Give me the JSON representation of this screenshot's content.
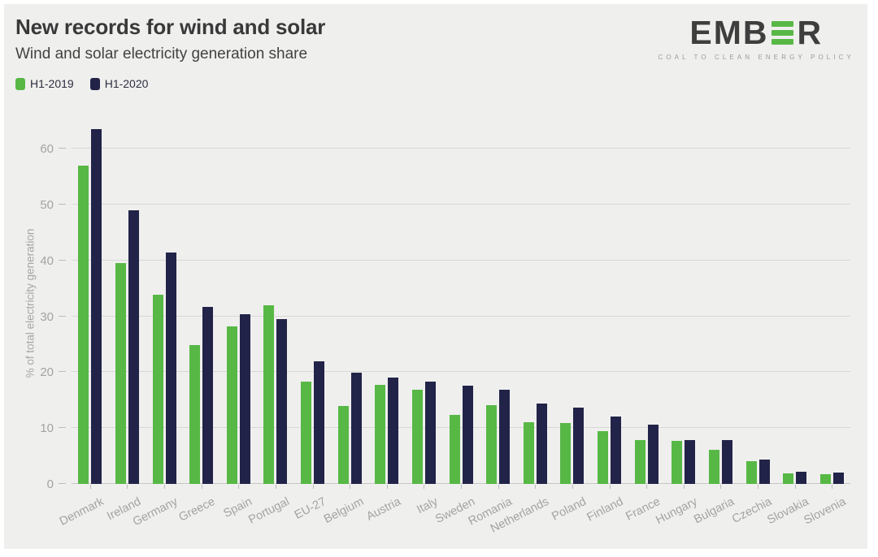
{
  "header": {
    "title": "New records for wind and solar",
    "subtitle": "Wind and solar electricity generation share"
  },
  "legend": {
    "items": [
      {
        "label": "H1-2019",
        "color": "#57b845"
      },
      {
        "label": "H1-2020",
        "color": "#222348"
      }
    ]
  },
  "logo": {
    "text_start": "EMB",
    "green_e_icon": "three-green-bars-letter-e",
    "text_end": "R",
    "tagline": "COAL TO CLEAN ENERGY POLICY"
  },
  "chart_data": {
    "type": "bar",
    "title": "New records for wind and solar",
    "subtitle": "Wind and solar electricity generation share",
    "xlabel": "",
    "ylabel": "% of total electricity generation",
    "ylim": [
      0,
      65
    ],
    "yticks": [
      0,
      10,
      20,
      30,
      40,
      50,
      60
    ],
    "grid": true,
    "legend_position": "top-left",
    "categories": [
      "Denmark",
      "Ireland",
      "Germany",
      "Greece",
      "Spain",
      "Portugal",
      "EU-27",
      "Belgium",
      "Austria",
      "Italy",
      "Sweden",
      "Romania",
      "Netherlands",
      "Poland",
      "Finland",
      "France",
      "Hungary",
      "Bulgaria",
      "Czechia",
      "Slovakia",
      "Slovenia"
    ],
    "series": [
      {
        "name": "H1-2019",
        "color": "#57b845",
        "values": [
          57.0,
          39.5,
          33.8,
          24.9,
          28.2,
          32.0,
          18.3,
          14.0,
          17.7,
          16.9,
          12.3,
          14.1,
          11.0,
          10.9,
          9.5,
          7.9,
          7.7,
          6.1,
          4.0,
          1.9,
          1.8
        ]
      },
      {
        "name": "H1-2020",
        "color": "#222348",
        "values": [
          63.5,
          48.9,
          41.4,
          31.7,
          30.3,
          29.5,
          21.9,
          19.9,
          19.0,
          18.3,
          17.6,
          16.9,
          14.4,
          13.7,
          12.0,
          10.6,
          7.9,
          7.8,
          4.4,
          2.2,
          2.1
        ]
      }
    ]
  },
  "colors": {
    "background": "#efefee",
    "frame": "#ffffff",
    "series_green": "#57b845",
    "series_navy": "#222348",
    "grid": "#d8d8d8",
    "axis_text": "#a3a3a3",
    "title_text": "#393939",
    "logo_text": "#3e3e3e",
    "logo_green": "#57b845",
    "tagline_text": "#9a9a9a"
  }
}
